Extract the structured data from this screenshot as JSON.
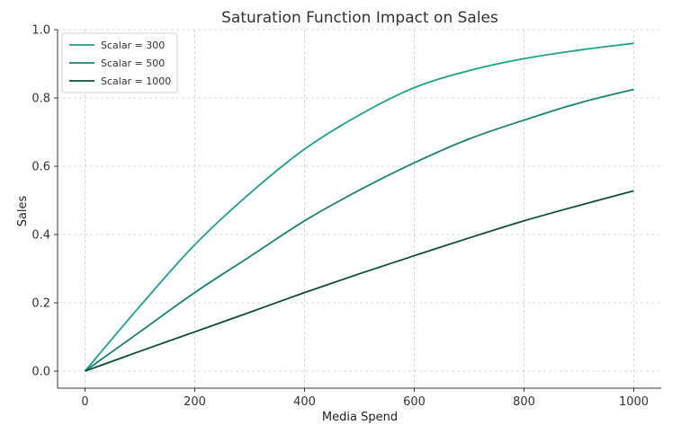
{
  "chart_data": {
    "type": "line",
    "title": "Saturation Function Impact on Sales",
    "xlabel": "Media Spend",
    "ylabel": "Sales",
    "xlim": [
      -50,
      1050
    ],
    "ylim": [
      -0.05,
      1.0
    ],
    "xticks": [
      0,
      200,
      400,
      600,
      800,
      1000
    ],
    "yticks": [
      0.0,
      0.2,
      0.4,
      0.6,
      0.8,
      1.0
    ],
    "xtick_labels": [
      "0",
      "200",
      "400",
      "600",
      "800",
      "1000"
    ],
    "ytick_labels": [
      "0.0",
      "0.2",
      "0.4",
      "0.6",
      "0.8",
      "1.0"
    ],
    "grid": true,
    "legend_position": "top-left",
    "x": [
      0,
      100,
      200,
      300,
      400,
      500,
      600,
      700,
      800,
      900,
      1000
    ],
    "series": [
      {
        "name": "Scalar = 300",
        "color": "#1aa38a",
        "values": [
          0.0,
          0.19,
          0.37,
          0.52,
          0.65,
          0.75,
          0.83,
          0.88,
          0.915,
          0.94,
          0.96
        ]
      },
      {
        "name": "Scalar = 500",
        "color": "#16876c",
        "values": [
          0.0,
          0.115,
          0.23,
          0.335,
          0.44,
          0.53,
          0.61,
          0.68,
          0.735,
          0.785,
          0.825
        ]
      },
      {
        "name": "Scalar = 1000",
        "color": "#0f4d3a",
        "values": [
          0.0,
          0.058,
          0.115,
          0.172,
          0.23,
          0.285,
          0.338,
          0.39,
          0.44,
          0.485,
          0.528
        ]
      }
    ]
  }
}
